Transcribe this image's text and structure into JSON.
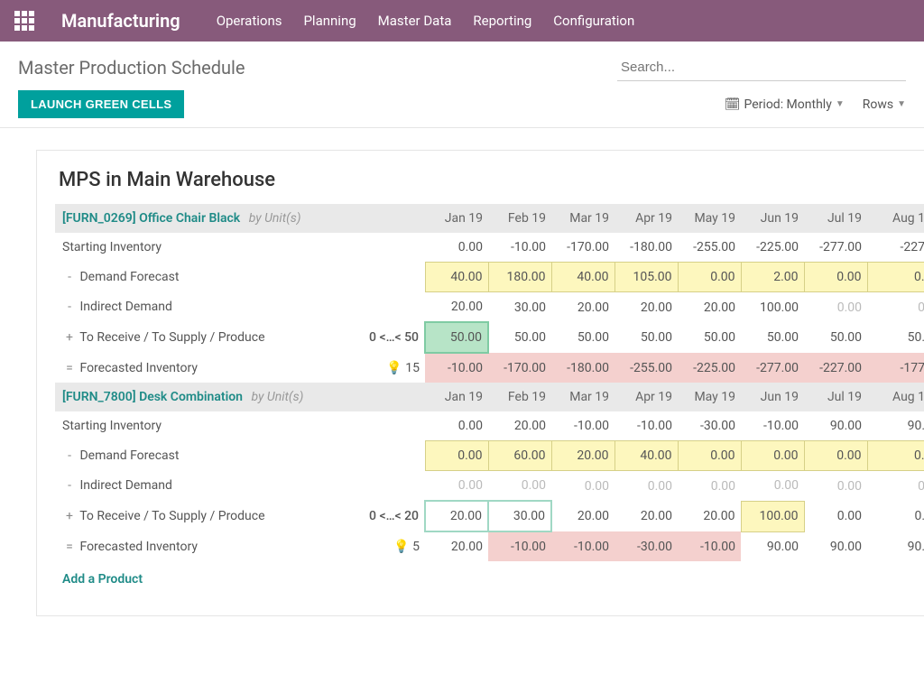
{
  "topbar": {
    "brand": "Manufacturing",
    "nav": [
      "Operations",
      "Planning",
      "Master Data",
      "Reporting",
      "Configuration"
    ]
  },
  "subheader": {
    "title": "Master Production Schedule",
    "search_placeholder": "Search...",
    "launch_label": "LAUNCH GREEN CELLS",
    "period_label": "Period: Monthly",
    "rows_label": "Rows"
  },
  "panel": {
    "title": "MPS in Main Warehouse",
    "months": [
      "Jan 19",
      "Feb 19",
      "Mar 19",
      "Apr 19",
      "May 19",
      "Jun 19",
      "Jul 19",
      "Aug 1"
    ],
    "by_label": "by",
    "units_label": "Unit(s)",
    "add_product": "Add a Product",
    "row_labels": {
      "starting": "Starting Inventory",
      "demand": "Demand Forecast",
      "indirect": "Indirect Demand",
      "supply": "To Receive / To Supply / Produce",
      "forecasted": "Forecasted Inventory"
    },
    "products": [
      {
        "code": "[FURN_0269] Office Chair Black",
        "range": "0 <…< 50",
        "bulb": "15",
        "starting": [
          "0.00",
          "-10.00",
          "-170.00",
          "-180.00",
          "-255.00",
          "-225.00",
          "-277.00",
          "-227"
        ],
        "demand": [
          "40.00",
          "180.00",
          "40.00",
          "105.00",
          "0.00",
          "2.00",
          "0.00",
          "0."
        ],
        "indirect": [
          "20.00",
          "30.00",
          "20.00",
          "20.00",
          "20.00",
          "100.00",
          "0.00",
          "0"
        ],
        "indirect_muted": [
          false,
          false,
          false,
          false,
          false,
          false,
          true,
          true
        ],
        "supply": [
          "50.00",
          "50.00",
          "50.00",
          "50.00",
          "50.00",
          "50.00",
          "50.00",
          "50."
        ],
        "supply_style": [
          "green",
          "plain",
          "plain",
          "plain",
          "plain",
          "plain",
          "plain",
          "plain"
        ],
        "forecasted": [
          "-10.00",
          "-170.00",
          "-180.00",
          "-255.00",
          "-225.00",
          "-277.00",
          "-227.00",
          "-177"
        ],
        "forecasted_style": [
          "pink",
          "pink",
          "pink",
          "pink",
          "pink",
          "pink",
          "pink",
          "pink"
        ]
      },
      {
        "code": "[FURN_7800] Desk Combination",
        "range": "0 <…< 20",
        "bulb": "5",
        "starting": [
          "0.00",
          "20.00",
          "-10.00",
          "-10.00",
          "-30.00",
          "-10.00",
          "90.00",
          "90."
        ],
        "demand": [
          "0.00",
          "60.00",
          "20.00",
          "40.00",
          "0.00",
          "0.00",
          "0.00",
          "0."
        ],
        "indirect": [
          "0.00",
          "0.00",
          "0.00",
          "0.00",
          "0.00",
          "0.00",
          "0.00",
          "0"
        ],
        "indirect_muted": [
          true,
          true,
          true,
          true,
          true,
          true,
          true,
          true
        ],
        "supply": [
          "20.00",
          "30.00",
          "20.00",
          "20.00",
          "20.00",
          "100.00",
          "0.00",
          "0."
        ],
        "supply_style": [
          "green-outline",
          "green-outline",
          "plain",
          "plain",
          "plain",
          "yellow",
          "plain",
          "plain"
        ],
        "forecasted": [
          "20.00",
          "-10.00",
          "-10.00",
          "-30.00",
          "-10.00",
          "90.00",
          "90.00",
          "90."
        ],
        "forecasted_style": [
          "plain",
          "pink",
          "pink",
          "pink",
          "pink",
          "plain",
          "plain",
          "plain"
        ]
      }
    ]
  }
}
